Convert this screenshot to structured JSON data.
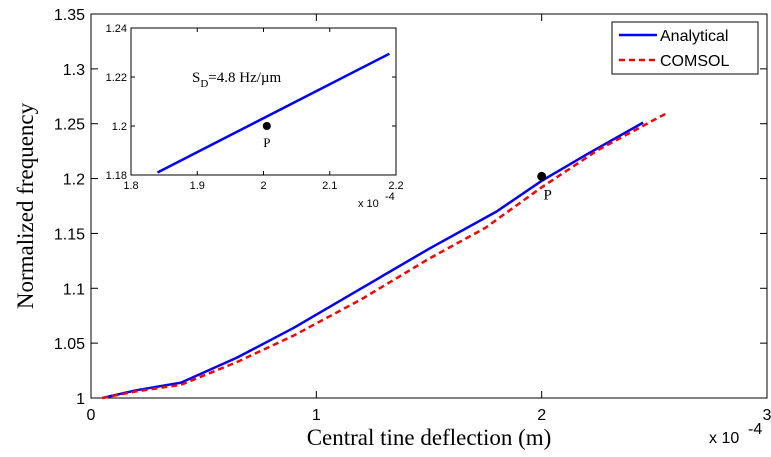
{
  "chart_data": [
    {
      "type": "line",
      "xlabel": "Central tine deflection (m)",
      "ylabel": "Normalized frequency",
      "x_multiplier": "x 10",
      "x_multiplier_exp": "-4",
      "xlim": [
        0,
        3
      ],
      "ylim": [
        1,
        1.35
      ],
      "xticks": [
        "0",
        "1",
        "2",
        "3"
      ],
      "yticks": [
        "1",
        "1.05",
        "1.1",
        "1.15",
        "1.2",
        "1.25",
        "1.3",
        "1.35"
      ],
      "grid": false,
      "legend_position": "top-right",
      "series": [
        {
          "name": "Analytical",
          "color": "#0000ff",
          "style": "solid",
          "x": [
            0.05,
            0.2,
            0.4,
            0.65,
            0.9,
            1.2,
            1.5,
            1.8,
            2.0,
            2.2,
            2.45
          ],
          "y": [
            1.0,
            1.007,
            1.014,
            1.037,
            1.064,
            1.1,
            1.136,
            1.17,
            1.198,
            1.222,
            1.251
          ]
        },
        {
          "name": "COMSOL",
          "color": "#ff0000",
          "style": "dashed",
          "x": [
            0.05,
            0.2,
            0.4,
            0.65,
            0.9,
            1.2,
            1.5,
            1.75,
            2.0,
            2.25,
            2.55
          ],
          "y": [
            1.0,
            1.006,
            1.012,
            1.033,
            1.057,
            1.09,
            1.127,
            1.155,
            1.192,
            1.226,
            1.259
          ]
        }
      ],
      "annotations": [
        {
          "text": "P",
          "x": 2.0,
          "y": 1.202
        }
      ]
    },
    {
      "type": "line",
      "xlim": [
        1.8,
        2.2
      ],
      "ylim": [
        1.18,
        1.24
      ],
      "xticks": [
        "1.8",
        "1.9",
        "2",
        "2.1",
        "2.2"
      ],
      "yticks": [
        "1.18",
        "1.2",
        "1.22",
        "1.24"
      ],
      "x_multiplier": "x 10",
      "x_multiplier_exp": "-4",
      "series": [
        {
          "color": "#0000ff",
          "style": "solid",
          "x": [
            1.84,
            2.19
          ],
          "y": [
            1.181,
            1.2295
          ]
        }
      ],
      "annotations": [
        {
          "text": "P",
          "x": 2.005,
          "y": 1.2
        },
        {
          "text": "S",
          "sub": "D",
          "rest": "=4.8 Hz/µm"
        }
      ]
    }
  ]
}
